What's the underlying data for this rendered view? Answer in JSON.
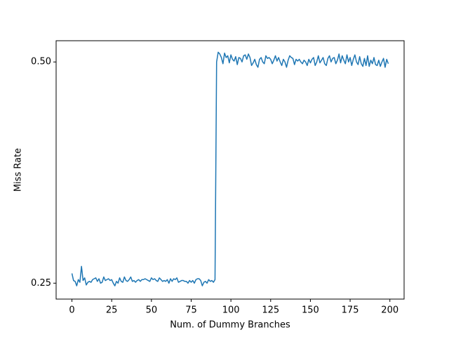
{
  "chart_data": {
    "type": "line",
    "xlabel": "Num. of Dummy Branches",
    "ylabel": "Miss Rate",
    "xlim": [
      -9.95,
      208.95
    ],
    "ylim": [
      0.232,
      0.524
    ],
    "xticks": [
      0,
      25,
      50,
      75,
      100,
      125,
      150,
      175,
      200
    ],
    "yticks": [
      0.25,
      {
        "value": 0.5,
        "label": "0.50"
      }
    ],
    "x": [
      0,
      1,
      2,
      3,
      4,
      5,
      6,
      7,
      8,
      9,
      10,
      11,
      12,
      13,
      14,
      15,
      16,
      17,
      18,
      19,
      20,
      21,
      22,
      23,
      24,
      25,
      26,
      27,
      28,
      29,
      30,
      31,
      32,
      33,
      34,
      35,
      36,
      37,
      38,
      39,
      40,
      41,
      42,
      43,
      44,
      45,
      46,
      47,
      48,
      49,
      50,
      51,
      52,
      53,
      54,
      55,
      56,
      57,
      58,
      59,
      60,
      61,
      62,
      63,
      64,
      65,
      66,
      67,
      68,
      69,
      70,
      71,
      72,
      73,
      74,
      75,
      76,
      77,
      78,
      79,
      80,
      81,
      82,
      83,
      84,
      85,
      86,
      87,
      88,
      89,
      90,
      91,
      92,
      93,
      94,
      95,
      96,
      97,
      98,
      99,
      100,
      101,
      102,
      103,
      104,
      105,
      106,
      107,
      108,
      109,
      110,
      111,
      112,
      113,
      114,
      115,
      116,
      117,
      118,
      119,
      120,
      121,
      122,
      123,
      124,
      125,
      126,
      127,
      128,
      129,
      130,
      131,
      132,
      133,
      134,
      135,
      136,
      137,
      138,
      139,
      140,
      141,
      142,
      143,
      144,
      145,
      146,
      147,
      148,
      149,
      150,
      151,
      152,
      153,
      154,
      155,
      156,
      157,
      158,
      159,
      160,
      161,
      162,
      163,
      164,
      165,
      166,
      167,
      168,
      169,
      170,
      171,
      172,
      173,
      174,
      175,
      176,
      177,
      178,
      179,
      180,
      181,
      182,
      183,
      184,
      185,
      186,
      187,
      188,
      189,
      190,
      191,
      192,
      193,
      194,
      195,
      196,
      197,
      198,
      199
    ],
    "series": [
      {
        "color": "#1f77b4",
        "values": [
          0.261,
          0.253,
          0.252,
          0.247,
          0.254,
          0.251,
          0.269,
          0.253,
          0.256,
          0.248,
          0.251,
          0.252,
          0.251,
          0.254,
          0.255,
          0.256,
          0.252,
          0.255,
          0.25,
          0.251,
          0.257,
          0.253,
          0.254,
          0.255,
          0.253,
          0.254,
          0.25,
          0.247,
          0.252,
          0.25,
          0.256,
          0.252,
          0.251,
          0.257,
          0.253,
          0.252,
          0.254,
          0.257,
          0.252,
          0.253,
          0.251,
          0.253,
          0.254,
          0.252,
          0.254,
          0.254,
          0.255,
          0.254,
          0.253,
          0.252,
          0.256,
          0.254,
          0.255,
          0.253,
          0.252,
          0.256,
          0.254,
          0.252,
          0.253,
          0.252,
          0.254,
          0.25,
          0.255,
          0.252,
          0.255,
          0.254,
          0.256,
          0.251,
          0.252,
          0.253,
          0.253,
          0.252,
          0.252,
          0.25,
          0.253,
          0.251,
          0.253,
          0.25,
          0.254,
          0.255,
          0.255,
          0.253,
          0.247,
          0.251,
          0.252,
          0.25,
          0.254,
          0.252,
          0.253,
          0.251,
          0.254,
          0.5,
          0.511,
          0.509,
          0.505,
          0.498,
          0.51,
          0.505,
          0.507,
          0.499,
          0.508,
          0.503,
          0.501,
          0.506,
          0.497,
          0.505,
          0.504,
          0.5,
          0.507,
          0.508,
          0.503,
          0.509,
          0.505,
          0.496,
          0.499,
          0.503,
          0.497,
          0.494,
          0.503,
          0.505,
          0.5,
          0.498,
          0.507,
          0.504,
          0.505,
          0.503,
          0.498,
          0.502,
          0.507,
          0.501,
          0.505,
          0.5,
          0.496,
          0.503,
          0.5,
          0.494,
          0.502,
          0.507,
          0.505,
          0.504,
          0.497,
          0.503,
          0.501,
          0.503,
          0.5,
          0.498,
          0.502,
          0.5,
          0.496,
          0.503,
          0.499,
          0.503,
          0.505,
          0.496,
          0.5,
          0.507,
          0.499,
          0.502,
          0.505,
          0.498,
          0.496,
          0.504,
          0.507,
          0.5,
          0.504,
          0.505,
          0.498,
          0.502,
          0.509,
          0.499,
          0.507,
          0.502,
          0.498,
          0.508,
          0.5,
          0.505,
          0.496,
          0.503,
          0.508,
          0.5,
          0.497,
          0.506,
          0.498,
          0.495,
          0.504,
          0.496,
          0.507,
          0.495,
          0.502,
          0.498,
          0.505,
          0.497,
          0.496,
          0.502,
          0.495,
          0.5,
          0.504,
          0.494,
          0.503,
          0.498
        ]
      }
    ]
  }
}
